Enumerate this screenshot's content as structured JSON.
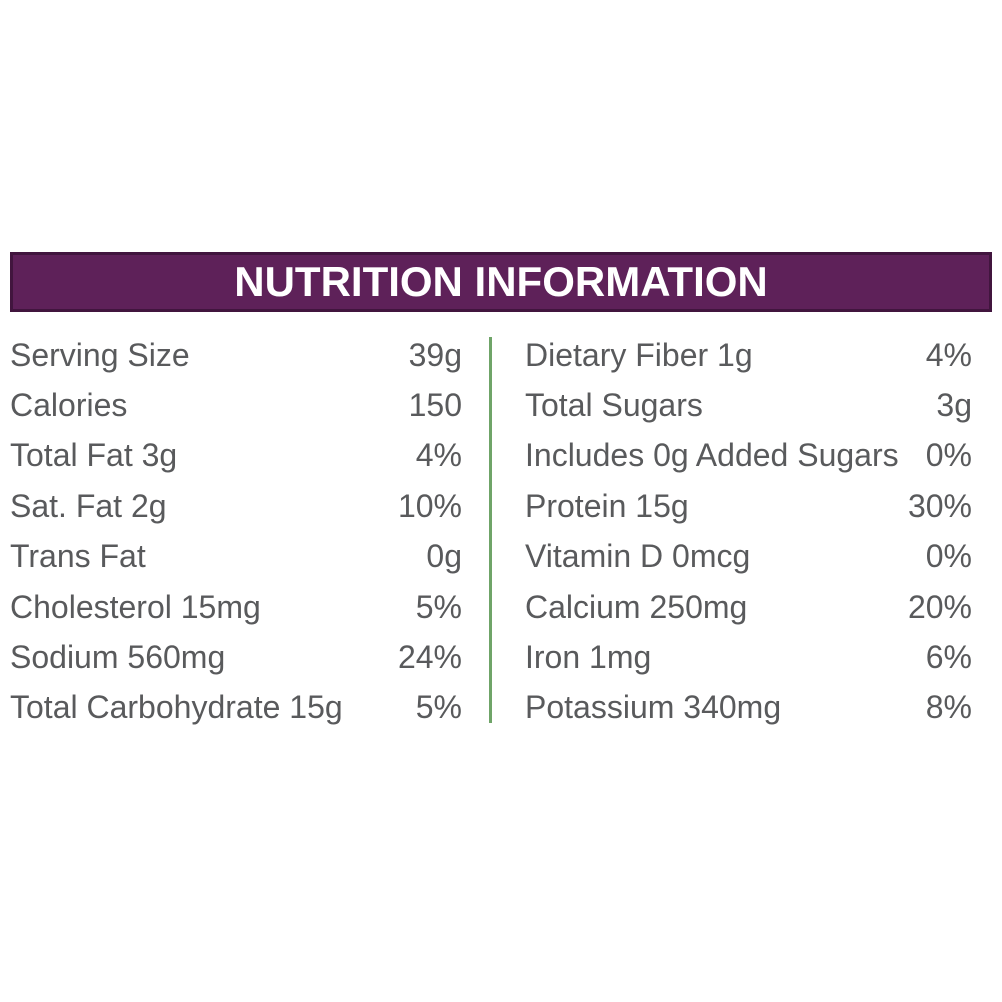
{
  "header": {
    "title": "NUTRITION INFORMATION"
  },
  "table": {
    "left": [
      {
        "label": "Serving Size",
        "value": "39g"
      },
      {
        "label": "Calories",
        "value": "150"
      },
      {
        "label": "Total Fat 3g",
        "value": "4%"
      },
      {
        "label": "Sat. Fat 2g",
        "value": "10%"
      },
      {
        "label": "Trans Fat",
        "value": "0g"
      },
      {
        "label": "Cholesterol 15mg",
        "value": "5%"
      },
      {
        "label": "Sodium 560mg",
        "value": "24%"
      },
      {
        "label": "Total Carbohydrate 15g",
        "value": "5%"
      }
    ],
    "right": [
      {
        "label": "Dietary Fiber 1g",
        "value": "4%"
      },
      {
        "label": "Total Sugars",
        "value": "3g"
      },
      {
        "label": "Includes 0g Added Sugars",
        "value": "0%"
      },
      {
        "label": "Protein 15g",
        "value": "30%"
      },
      {
        "label": "Vitamin D 0mcg",
        "value": "0%"
      },
      {
        "label": "Calcium 250mg",
        "value": "20%"
      },
      {
        "label": "Iron 1mg",
        "value": "6%"
      },
      {
        "label": "Potassium 340mg",
        "value": "8%"
      }
    ]
  },
  "colors": {
    "page_bg": "#FFFFFF",
    "header_bg": "#5E2159",
    "header_border": "#41153E",
    "header_text": "#FFFFFF",
    "divider_green": "#6FA468",
    "body_text": "#595A5C"
  }
}
